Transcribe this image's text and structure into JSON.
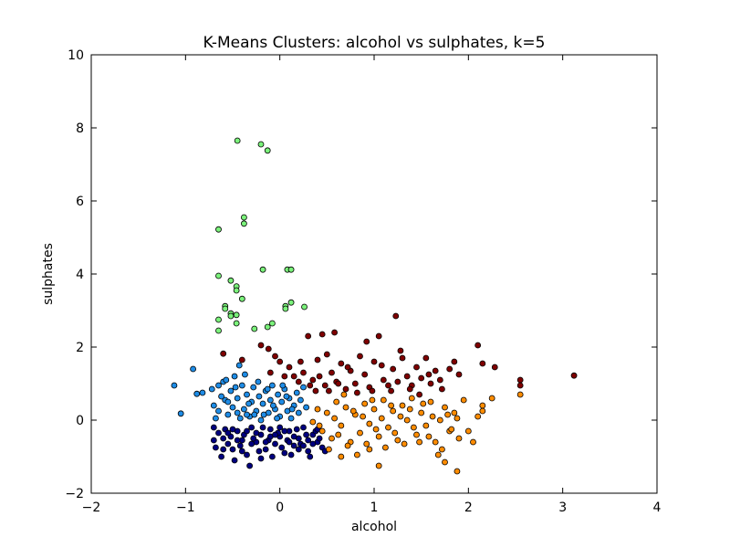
{
  "chart_data": {
    "type": "scatter",
    "title": "K-Means Clusters: alcohol vs sulphates, k=5",
    "xlabel": "alcohol",
    "ylabel": "sulphates",
    "xlim": [
      -2,
      4
    ],
    "ylim": [
      -2,
      10
    ],
    "xticks": [
      "−2",
      "−1",
      "0",
      "1",
      "2",
      "3",
      "4"
    ],
    "yticks": [
      "−2",
      "0",
      "2",
      "4",
      "6",
      "8",
      "10"
    ],
    "grid": false,
    "legend": "none",
    "colors": {
      "cluster_0": "#00007f",
      "cluster_1": "#1e8ce6",
      "cluster_2": "#7bf27b",
      "cluster_3": "#ff8c00",
      "cluster_4": "#7f0000"
    },
    "series": [
      {
        "color": "#00007f",
        "points": [
          [
            -0.7,
            -0.2
          ],
          [
            -0.65,
            -0.35
          ],
          [
            -0.6,
            -0.5
          ],
          [
            -0.55,
            -0.65
          ],
          [
            -0.5,
            -0.8
          ],
          [
            -0.45,
            -0.3
          ],
          [
            -0.4,
            -0.55
          ],
          [
            -0.35,
            -0.95
          ],
          [
            -0.3,
            -0.2
          ],
          [
            -0.25,
            -0.6
          ],
          [
            -0.2,
            -0.4
          ],
          [
            -0.15,
            -0.8
          ],
          [
            -0.1,
            -0.25
          ],
          [
            -0.05,
            -0.65
          ],
          [
            0.0,
            -0.45
          ],
          [
            0.05,
            -0.9
          ],
          [
            0.1,
            -0.3
          ],
          [
            0.15,
            -0.7
          ],
          [
            0.2,
            -0.5
          ],
          [
            0.25,
            -0.2
          ],
          [
            0.3,
            -0.85
          ],
          [
            0.35,
            -0.4
          ],
          [
            0.4,
            -0.6
          ],
          [
            0.45,
            -0.75
          ],
          [
            -0.68,
            -0.75
          ],
          [
            -0.62,
            -1.0
          ],
          [
            -0.58,
            -0.25
          ],
          [
            -0.52,
            -0.45
          ],
          [
            -0.48,
            -1.1
          ],
          [
            -0.42,
            -0.7
          ],
          [
            -0.38,
            -0.4
          ],
          [
            -0.32,
            -1.25
          ],
          [
            -0.28,
            -0.5
          ],
          [
            -0.22,
            -0.85
          ],
          [
            -0.18,
            -0.2
          ],
          [
            -0.12,
            -0.55
          ],
          [
            -0.08,
            -1.0
          ],
          [
            -0.02,
            -0.35
          ],
          [
            0.02,
            -0.75
          ],
          [
            0.08,
            -0.55
          ],
          [
            0.12,
            -0.95
          ],
          [
            0.18,
            -0.25
          ],
          [
            0.22,
            -0.65
          ],
          [
            0.28,
            -0.4
          ],
          [
            0.32,
            -1.0
          ],
          [
            0.38,
            -0.3
          ],
          [
            0.42,
            -0.5
          ],
          [
            0.48,
            -0.85
          ],
          [
            -0.7,
            -0.55
          ],
          [
            -0.6,
            -0.8
          ],
          [
            -0.5,
            -0.25
          ],
          [
            -0.4,
            -0.85
          ],
          [
            -0.3,
            -0.65
          ],
          [
            -0.2,
            -1.05
          ],
          [
            -0.1,
            -0.45
          ],
          [
            0.0,
            -0.2
          ],
          [
            0.1,
            -0.6
          ],
          [
            0.2,
            -0.8
          ],
          [
            0.3,
            -0.55
          ],
          [
            0.4,
            -0.25
          ],
          [
            -0.55,
            -0.35
          ],
          [
            -0.45,
            -0.55
          ],
          [
            -0.35,
            -0.3
          ],
          [
            -0.25,
            -0.35
          ],
          [
            -0.15,
            -0.6
          ],
          [
            -0.05,
            -0.4
          ],
          [
            0.05,
            -0.3
          ],
          [
            0.15,
            -0.45
          ],
          [
            0.25,
            -0.7
          ],
          [
            0.35,
            -0.65
          ]
        ]
      },
      {
        "color": "#1e8ce6",
        "points": [
          [
            -1.12,
            0.95
          ],
          [
            -1.05,
            0.18
          ],
          [
            -0.92,
            1.4
          ],
          [
            -0.88,
            0.72
          ],
          [
            -0.82,
            0.75
          ],
          [
            -0.72,
            0.85
          ],
          [
            -0.7,
            0.4
          ],
          [
            -0.68,
            0.05
          ],
          [
            -0.65,
            0.25
          ],
          [
            -0.6,
            1.05
          ],
          [
            -0.58,
            0.55
          ],
          [
            -0.55,
            0.15
          ],
          [
            -0.52,
            0.8
          ],
          [
            -0.5,
            0.35
          ],
          [
            -0.48,
            1.2
          ],
          [
            -0.45,
            0.6
          ],
          [
            -0.42,
            0.05
          ],
          [
            -0.4,
            0.95
          ],
          [
            -0.38,
            0.3
          ],
          [
            -0.35,
            0.7
          ],
          [
            -0.32,
            0.1
          ],
          [
            -0.3,
            0.5
          ],
          [
            -0.28,
            0.9
          ],
          [
            -0.25,
            0.25
          ],
          [
            -0.22,
            0.65
          ],
          [
            -0.2,
            0.0
          ],
          [
            -0.18,
            0.45
          ],
          [
            -0.15,
            0.8
          ],
          [
            -0.12,
            0.2
          ],
          [
            -0.1,
            0.55
          ],
          [
            -0.08,
            0.95
          ],
          [
            -0.05,
            0.3
          ],
          [
            -0.02,
            0.7
          ],
          [
            0.0,
            0.1
          ],
          [
            0.02,
            0.5
          ],
          [
            0.05,
            0.85
          ],
          [
            0.08,
            0.25
          ],
          [
            0.1,
            0.6
          ],
          [
            0.12,
            0.05
          ],
          [
            0.15,
            0.4
          ],
          [
            0.18,
            0.75
          ],
          [
            0.2,
            0.2
          ],
          [
            0.22,
            0.55
          ],
          [
            0.25,
            0.9
          ],
          [
            0.28,
            0.35
          ],
          [
            -0.62,
            0.65
          ],
          [
            -0.57,
            1.1
          ],
          [
            -0.47,
            0.9
          ],
          [
            -0.43,
            1.5
          ],
          [
            -0.37,
            1.25
          ],
          [
            -0.33,
            0.45
          ],
          [
            -0.27,
            0.15
          ],
          [
            -0.23,
            1.05
          ],
          [
            -0.17,
            0.15
          ],
          [
            -0.13,
            0.85
          ],
          [
            -0.07,
            0.4
          ],
          [
            -0.03,
            0.05
          ],
          [
            0.03,
            0.95
          ],
          [
            0.07,
            0.65
          ],
          [
            0.13,
            0.3
          ],
          [
            -0.65,
            0.95
          ],
          [
            -0.55,
            0.5
          ],
          [
            -0.45,
            0.2
          ],
          [
            -0.35,
            0.15
          ]
        ]
      },
      {
        "color": "#7bf27b",
        "points": [
          [
            -0.45,
            7.65
          ],
          [
            -0.2,
            7.55
          ],
          [
            -0.13,
            7.38
          ],
          [
            -0.38,
            5.55
          ],
          [
            -0.38,
            5.38
          ],
          [
            -0.65,
            5.22
          ],
          [
            -0.18,
            4.12
          ],
          [
            0.08,
            4.12
          ],
          [
            0.12,
            4.12
          ],
          [
            -0.65,
            3.95
          ],
          [
            -0.52,
            3.82
          ],
          [
            -0.46,
            3.66
          ],
          [
            -0.46,
            3.55
          ],
          [
            -0.4,
            3.32
          ],
          [
            -0.58,
            3.12
          ],
          [
            -0.58,
            3.05
          ],
          [
            0.12,
            3.22
          ],
          [
            0.06,
            3.12
          ],
          [
            0.06,
            3.05
          ],
          [
            0.26,
            3.1
          ],
          [
            -0.52,
            2.92
          ],
          [
            -0.46,
            2.88
          ],
          [
            -0.52,
            2.85
          ],
          [
            -0.65,
            2.75
          ],
          [
            -0.46,
            2.65
          ],
          [
            -0.08,
            2.65
          ],
          [
            -0.13,
            2.55
          ],
          [
            -0.65,
            2.45
          ],
          [
            -0.27,
            2.5
          ]
        ]
      },
      {
        "color": "#ff8c00",
        "points": [
          [
            0.35,
            -0.05
          ],
          [
            0.4,
            0.3
          ],
          [
            0.45,
            -0.3
          ],
          [
            0.5,
            0.2
          ],
          [
            0.55,
            -0.5
          ],
          [
            0.6,
            0.5
          ],
          [
            0.65,
            -0.15
          ],
          [
            0.7,
            0.35
          ],
          [
            0.75,
            -0.6
          ],
          [
            0.8,
            0.15
          ],
          [
            0.85,
            -0.35
          ],
          [
            0.9,
            0.45
          ],
          [
            0.95,
            -0.1
          ],
          [
            1.0,
            0.3
          ],
          [
            1.05,
            -0.45
          ],
          [
            1.1,
            0.55
          ],
          [
            1.15,
            -0.2
          ],
          [
            1.2,
            0.25
          ],
          [
            1.25,
            -0.55
          ],
          [
            1.3,
            0.4
          ],
          [
            1.35,
            0.0
          ],
          [
            1.4,
            0.6
          ],
          [
            1.45,
            -0.4
          ],
          [
            1.5,
            0.2
          ],
          [
            1.55,
            -0.15
          ],
          [
            1.6,
            0.5
          ],
          [
            1.65,
            -0.6
          ],
          [
            1.7,
            0.0
          ],
          [
            1.75,
            0.35
          ],
          [
            1.8,
            -0.3
          ],
          [
            1.85,
            0.2
          ],
          [
            1.9,
            -0.5
          ],
          [
            0.42,
            -0.15
          ],
          [
            0.52,
            -0.8
          ],
          [
            0.58,
            0.05
          ],
          [
            0.62,
            -0.4
          ],
          [
            0.68,
            0.7
          ],
          [
            0.72,
            -0.7
          ],
          [
            0.78,
            0.25
          ],
          [
            0.82,
            -0.95
          ],
          [
            0.88,
            0.1
          ],
          [
            0.92,
            -0.65
          ],
          [
            0.98,
            0.55
          ],
          [
            1.02,
            -0.25
          ],
          [
            1.08,
            0.05
          ],
          [
            1.12,
            -0.75
          ],
          [
            1.18,
            0.4
          ],
          [
            1.22,
            -0.35
          ],
          [
            1.28,
            0.1
          ],
          [
            1.32,
            -0.65
          ],
          [
            1.38,
            0.3
          ],
          [
            1.42,
            -0.2
          ],
          [
            1.48,
            -0.6
          ],
          [
            1.52,
            0.45
          ],
          [
            1.58,
            -0.45
          ],
          [
            1.62,
            0.1
          ],
          [
            1.68,
            -0.95
          ],
          [
            1.72,
            -0.8
          ],
          [
            1.78,
            0.15
          ],
          [
            1.82,
            -0.25
          ],
          [
            1.88,
            0.05
          ],
          [
            1.95,
            0.55
          ],
          [
            2.0,
            -0.3
          ],
          [
            2.05,
            -0.6
          ],
          [
            2.1,
            0.1
          ],
          [
            2.15,
            0.4
          ],
          [
            2.25,
            0.6
          ],
          [
            2.55,
            0.7
          ],
          [
            1.05,
            -1.25
          ],
          [
            1.75,
            -1.15
          ],
          [
            1.88,
            -1.4
          ],
          [
            2.15,
            0.25
          ],
          [
            0.65,
            -1.0
          ],
          [
            0.95,
            -0.8
          ]
        ]
      },
      {
        "color": "#7f0000",
        "points": [
          [
            -0.6,
            1.82
          ],
          [
            -0.4,
            1.65
          ],
          [
            -0.2,
            2.05
          ],
          [
            -0.12,
            1.95
          ],
          [
            -0.05,
            1.75
          ],
          [
            0.0,
            1.6
          ],
          [
            0.1,
            1.45
          ],
          [
            0.15,
            1.2
          ],
          [
            0.2,
            1.05
          ],
          [
            0.25,
            1.3
          ],
          [
            0.3,
            2.3
          ],
          [
            0.35,
            1.1
          ],
          [
            0.4,
            1.65
          ],
          [
            0.45,
            2.35
          ],
          [
            0.48,
            0.95
          ],
          [
            0.5,
            1.8
          ],
          [
            0.55,
            1.3
          ],
          [
            0.58,
            2.4
          ],
          [
            0.6,
            1.05
          ],
          [
            0.65,
            1.55
          ],
          [
            0.7,
            0.85
          ],
          [
            0.75,
            1.35
          ],
          [
            0.8,
            1.0
          ],
          [
            0.85,
            1.75
          ],
          [
            0.9,
            1.25
          ],
          [
            0.92,
            2.15
          ],
          [
            0.95,
            0.9
          ],
          [
            1.0,
            1.6
          ],
          [
            1.05,
            2.3
          ],
          [
            1.1,
            1.1
          ],
          [
            1.15,
            0.95
          ],
          [
            1.2,
            1.4
          ],
          [
            1.23,
            2.85
          ],
          [
            1.25,
            1.05
          ],
          [
            1.3,
            1.7
          ],
          [
            1.35,
            1.2
          ],
          [
            1.4,
            0.95
          ],
          [
            1.45,
            1.45
          ],
          [
            1.5,
            1.15
          ],
          [
            1.55,
            1.7
          ],
          [
            1.6,
            1.0
          ],
          [
            1.65,
            1.35
          ],
          [
            1.7,
            1.1
          ],
          [
            1.8,
            1.4
          ],
          [
            1.85,
            1.6
          ],
          [
            1.9,
            1.25
          ],
          [
            2.1,
            2.05
          ],
          [
            2.15,
            1.55
          ],
          [
            2.28,
            1.45
          ],
          [
            2.55,
            1.1
          ],
          [
            2.55,
            0.95
          ],
          [
            3.12,
            1.22
          ],
          [
            0.22,
            1.6
          ],
          [
            0.32,
            0.95
          ],
          [
            0.42,
            1.2
          ],
          [
            0.52,
            0.8
          ],
          [
            0.62,
            1.0
          ],
          [
            0.72,
            1.45
          ],
          [
            0.82,
            0.75
          ],
          [
            0.98,
            0.8
          ],
          [
            1.08,
            1.5
          ],
          [
            1.18,
            0.8
          ],
          [
            1.28,
            1.9
          ],
          [
            1.38,
            0.85
          ],
          [
            1.48,
            0.7
          ],
          [
            1.58,
            1.25
          ],
          [
            1.72,
            0.85
          ],
          [
            0.05,
            1.2
          ],
          [
            -0.1,
            1.3
          ],
          [
            0.38,
            0.8
          ]
        ]
      }
    ]
  }
}
